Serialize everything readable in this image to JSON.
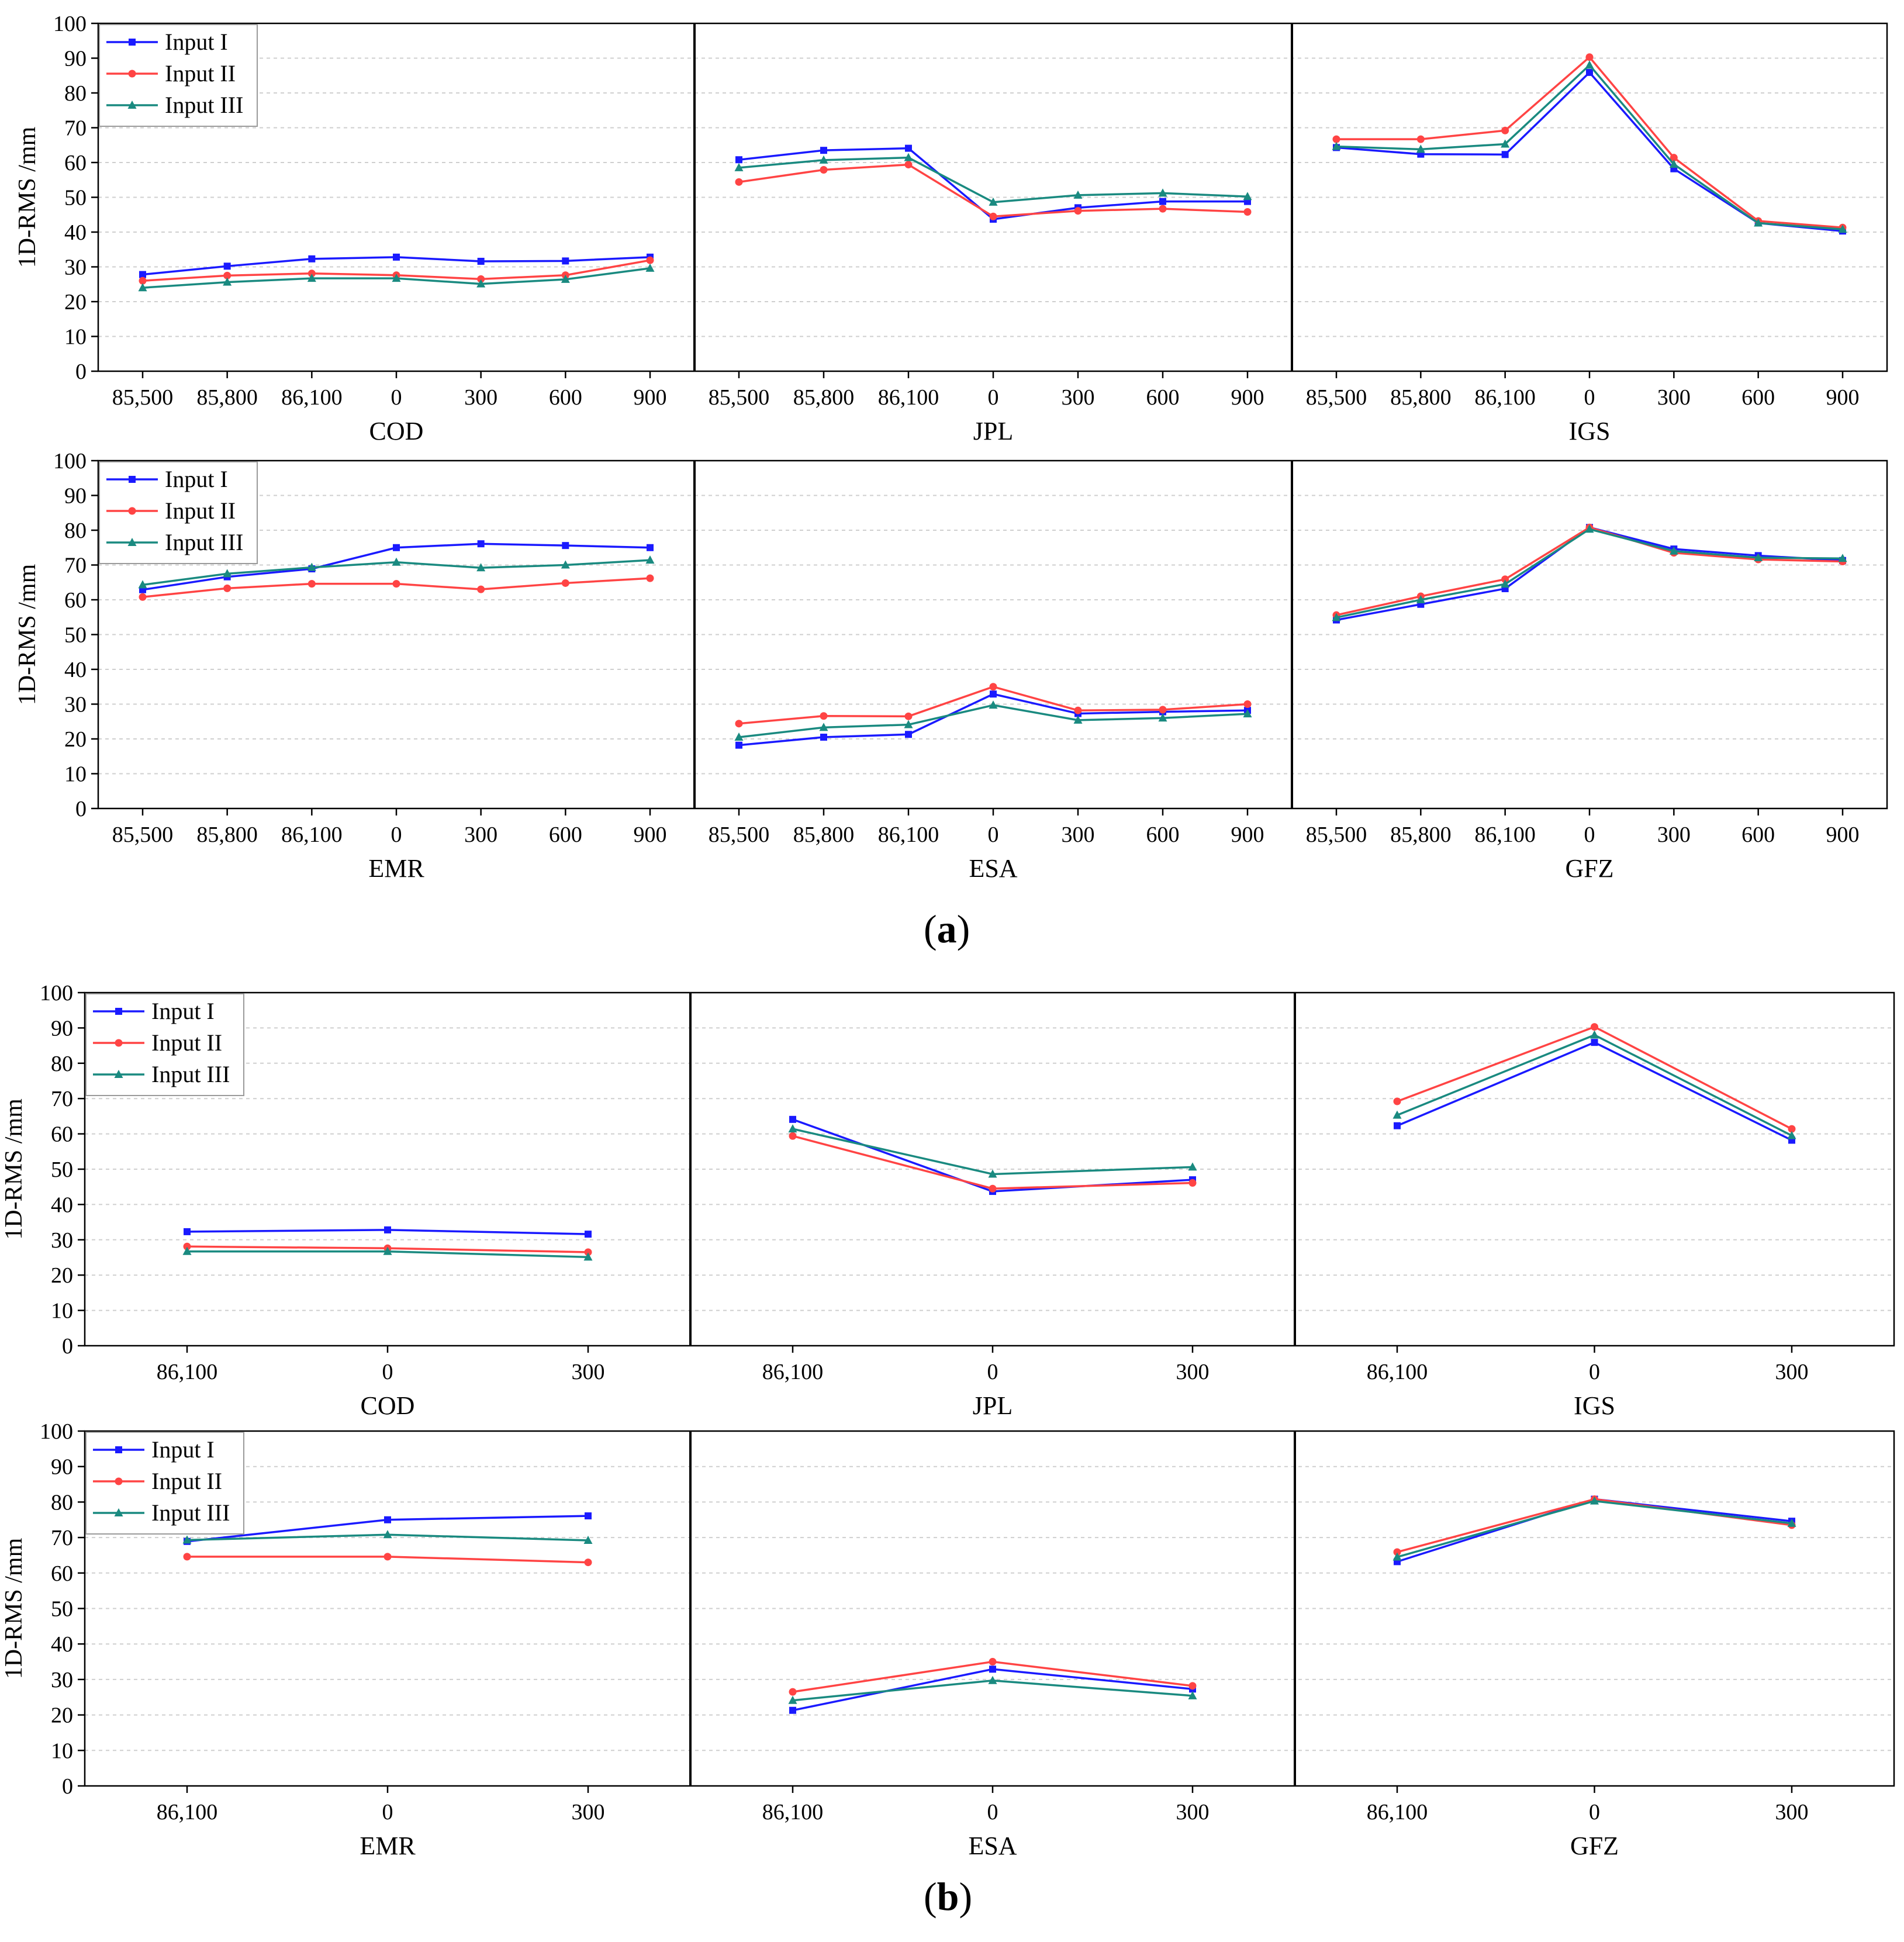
{
  "colors": {
    "Input I": "#1a1aff",
    "Input II": "#ff4444",
    "Input III": "#1a8a80"
  },
  "markers": {
    "Input I": "square",
    "Input II": "circle",
    "Input III": "triangle"
  },
  "legend_entries": [
    "Input I",
    "Input II",
    "Input III"
  ],
  "panel_labels": {
    "a": "a",
    "b": "b"
  },
  "chart_data": [
    {
      "id": "a-top",
      "type": "line",
      "ylabel": "1D-RMS /mm",
      "ylim": [
        0,
        100
      ],
      "yticks": [
        0,
        10,
        20,
        30,
        40,
        50,
        60,
        70,
        80,
        90,
        100
      ],
      "categories": [
        "85,500",
        "85,800",
        "86,100",
        "0",
        "300",
        "600",
        "900"
      ],
      "legend_position": "top-left",
      "subplots": [
        {
          "name": "COD",
          "series": [
            {
              "name": "Input I",
              "values": [
                27.8,
                30.2,
                32.3,
                32.8,
                31.6,
                31.7,
                32.8
              ]
            },
            {
              "name": "Input II",
              "values": [
                26.0,
                27.5,
                28.1,
                27.6,
                26.5,
                27.6,
                31.9
              ]
            },
            {
              "name": "Input III",
              "values": [
                24.0,
                25.6,
                26.7,
                26.7,
                25.1,
                26.4,
                29.6
              ]
            }
          ]
        },
        {
          "name": "JPL",
          "series": [
            {
              "name": "Input I",
              "values": [
                60.8,
                63.5,
                64.1,
                43.7,
                47.0,
                48.8,
                48.8
              ]
            },
            {
              "name": "Input II",
              "values": [
                54.4,
                57.9,
                59.4,
                44.5,
                46.1,
                46.7,
                45.8
              ]
            },
            {
              "name": "Input III",
              "values": [
                58.5,
                60.7,
                61.4,
                48.6,
                50.6,
                51.2,
                50.2
              ]
            }
          ]
        },
        {
          "name": "IGS",
          "series": [
            {
              "name": "Input I",
              "values": [
                64.3,
                62.4,
                62.3,
                85.9,
                58.2,
                42.6,
                40.3
              ]
            },
            {
              "name": "Input II",
              "values": [
                66.7,
                66.7,
                69.2,
                90.3,
                61.4,
                43.2,
                41.3
              ]
            },
            {
              "name": "Input III",
              "values": [
                64.6,
                63.8,
                65.3,
                88.0,
                59.5,
                42.6,
                40.8
              ]
            }
          ]
        }
      ]
    },
    {
      "id": "a-bottom",
      "type": "line",
      "ylabel": "1D-RMS /mm",
      "ylim": [
        0,
        100
      ],
      "yticks": [
        0,
        10,
        20,
        30,
        40,
        50,
        60,
        70,
        80,
        90,
        100
      ],
      "categories": [
        "85,500",
        "85,800",
        "86,100",
        "0",
        "300",
        "600",
        "900"
      ],
      "legend_position": "top-left",
      "subplots": [
        {
          "name": "EMR",
          "series": [
            {
              "name": "Input I",
              "values": [
                62.9,
                66.6,
                68.9,
                75.0,
                76.1,
                75.6,
                75.0
              ]
            },
            {
              "name": "Input II",
              "values": [
                60.8,
                63.3,
                64.6,
                64.6,
                63.0,
                64.8,
                66.2
              ]
            },
            {
              "name": "Input III",
              "values": [
                64.3,
                67.5,
                69.3,
                70.8,
                69.2,
                70.0,
                71.4
              ]
            }
          ]
        },
        {
          "name": "ESA",
          "series": [
            {
              "name": "Input I",
              "values": [
                18.2,
                20.5,
                21.3,
                32.9,
                27.3,
                27.8,
                28.2
              ]
            },
            {
              "name": "Input II",
              "values": [
                24.4,
                26.6,
                26.5,
                35.0,
                28.2,
                28.4,
                30.0
              ]
            },
            {
              "name": "Input III",
              "values": [
                20.5,
                23.3,
                24.1,
                29.7,
                25.4,
                26.0,
                27.2
              ]
            }
          ]
        },
        {
          "name": "GFZ",
          "series": [
            {
              "name": "Input I",
              "values": [
                54.2,
                58.7,
                63.2,
                80.8,
                74.6,
                72.7,
                71.3
              ]
            },
            {
              "name": "Input II",
              "values": [
                55.6,
                61.0,
                65.9,
                80.8,
                73.5,
                71.6,
                71.0
              ]
            },
            {
              "name": "Input III",
              "values": [
                54.9,
                60.0,
                64.5,
                80.3,
                74.0,
                72.1,
                71.9
              ]
            }
          ]
        }
      ]
    },
    {
      "id": "b-top",
      "type": "line",
      "ylabel": "1D-RMS /mm",
      "ylim": [
        0,
        100
      ],
      "yticks": [
        0,
        10,
        20,
        30,
        40,
        50,
        60,
        70,
        80,
        90,
        100
      ],
      "categories": [
        "86,100",
        "0",
        "300"
      ],
      "legend_position": "top-left",
      "subplots": [
        {
          "name": "COD",
          "series": [
            {
              "name": "Input I",
              "values": [
                32.3,
                32.8,
                31.6
              ]
            },
            {
              "name": "Input II",
              "values": [
                28.1,
                27.6,
                26.5
              ]
            },
            {
              "name": "Input III",
              "values": [
                26.7,
                26.7,
                25.1
              ]
            }
          ]
        },
        {
          "name": "JPL",
          "series": [
            {
              "name": "Input I",
              "values": [
                64.1,
                43.7,
                47.0
              ]
            },
            {
              "name": "Input II",
              "values": [
                59.4,
                44.5,
                46.1
              ]
            },
            {
              "name": "Input III",
              "values": [
                61.4,
                48.6,
                50.6
              ]
            }
          ]
        },
        {
          "name": "IGS",
          "series": [
            {
              "name": "Input I",
              "values": [
                62.3,
                85.9,
                58.2
              ]
            },
            {
              "name": "Input II",
              "values": [
                69.2,
                90.3,
                61.4
              ]
            },
            {
              "name": "Input III",
              "values": [
                65.3,
                88.0,
                59.5
              ]
            }
          ]
        }
      ]
    },
    {
      "id": "b-bottom",
      "type": "line",
      "ylabel": "1D-RMS /mm",
      "ylim": [
        0,
        100
      ],
      "yticks": [
        0,
        10,
        20,
        30,
        40,
        50,
        60,
        70,
        80,
        90,
        100
      ],
      "categories": [
        "86,100",
        "0",
        "300"
      ],
      "legend_position": "top-left",
      "subplots": [
        {
          "name": "EMR",
          "series": [
            {
              "name": "Input I",
              "values": [
                68.9,
                75.0,
                76.1
              ]
            },
            {
              "name": "Input II",
              "values": [
                64.6,
                64.6,
                63.0
              ]
            },
            {
              "name": "Input III",
              "values": [
                69.3,
                70.8,
                69.2
              ]
            }
          ]
        },
        {
          "name": "ESA",
          "series": [
            {
              "name": "Input I",
              "values": [
                21.3,
                32.9,
                27.3
              ]
            },
            {
              "name": "Input II",
              "values": [
                26.5,
                35.0,
                28.2
              ]
            },
            {
              "name": "Input III",
              "values": [
                24.1,
                29.7,
                25.4
              ]
            }
          ]
        },
        {
          "name": "GFZ",
          "series": [
            {
              "name": "Input I",
              "values": [
                63.2,
                80.8,
                74.6
              ]
            },
            {
              "name": "Input II",
              "values": [
                65.9,
                80.8,
                73.5
              ]
            },
            {
              "name": "Input III",
              "values": [
                64.5,
                80.3,
                74.0
              ]
            }
          ]
        }
      ]
    }
  ]
}
